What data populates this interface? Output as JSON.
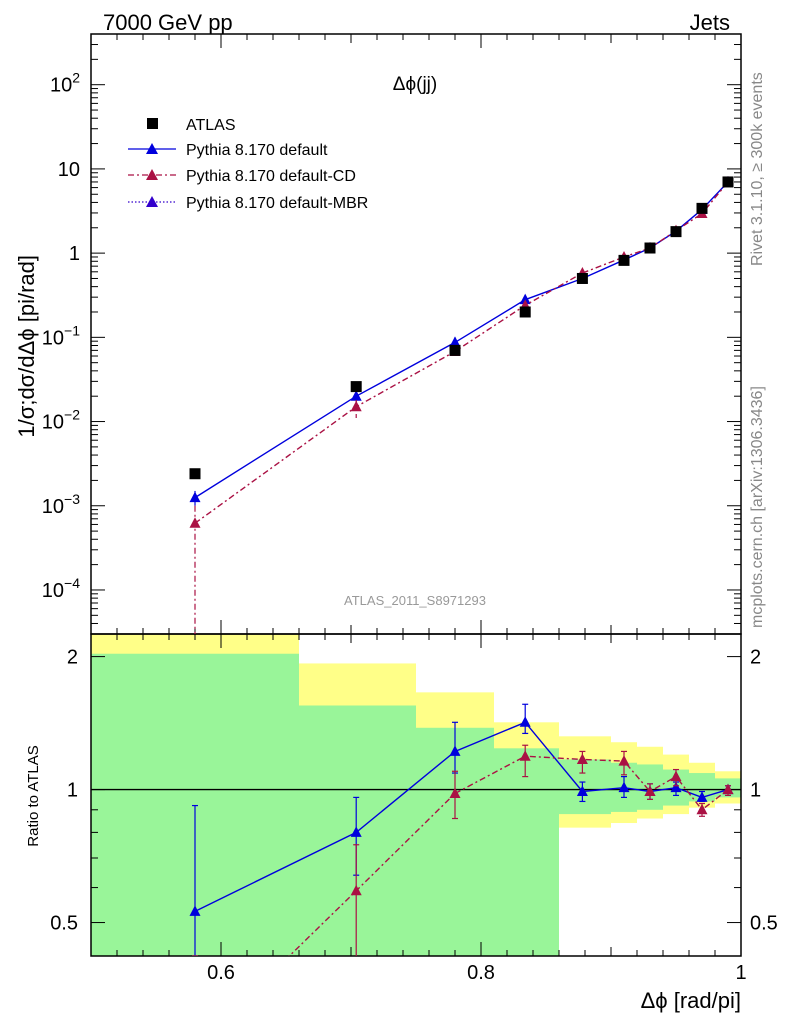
{
  "header": {
    "left": "7000 GeV pp",
    "right": "Jets"
  },
  "side_labels": {
    "top": "Rivet 3.1.10, ≥ 300k events",
    "bottom": "mcplots.cern.ch [arXiv:1306.3436]"
  },
  "watermark": "ATLAS_2011_S8971293",
  "chart_data": {
    "type": "scatter",
    "title": "Δϕ(jj)",
    "xlabel": "Δϕ [rad/pi]",
    "ylabel": "1/σ;dσ/dΔϕ [pi/rad]",
    "ratio_ylabel": "Ratio to ATLAS",
    "xlim": [
      0.5,
      1.0
    ],
    "ylim_main": [
      3e-05,
      400
    ],
    "ylim_ratio": [
      0.42,
      2.25
    ],
    "yscale_main": "log",
    "yscale_ratio": "log",
    "legend_position": "top-left",
    "x_ticks": [
      {
        "value": 0.6,
        "label": "0.6"
      },
      {
        "value": 0.8,
        "label": "0.8"
      },
      {
        "value": 1.0,
        "label": "1"
      }
    ],
    "main_y_ticks": [
      {
        "value": 100,
        "label": "10",
        "exp": "2"
      },
      {
        "value": 10,
        "label": "10",
        "exp": ""
      },
      {
        "value": 1,
        "label": "1",
        "exp": ""
      },
      {
        "value": 0.1,
        "label": "10",
        "exp": "−1"
      },
      {
        "value": 0.01,
        "label": "10",
        "exp": "−2"
      },
      {
        "value": 0.001,
        "label": "10",
        "exp": "−3"
      },
      {
        "value": 0.0001,
        "label": "10",
        "exp": "−4"
      }
    ],
    "ratio_y_ticks": [
      {
        "value": 2,
        "label": "2"
      },
      {
        "value": 1,
        "label": "1"
      },
      {
        "value": 0.5,
        "label": "0.5"
      }
    ],
    "data": {
      "name": "ATLAS",
      "color": "#000000",
      "x": [
        0.58,
        0.704,
        0.78,
        0.834,
        0.878,
        0.91,
        0.93,
        0.95,
        0.97,
        0.99
      ],
      "y": [
        0.0024,
        0.026,
        0.07,
        0.2,
        0.5,
        0.82,
        1.15,
        1.8,
        3.4,
        7.0
      ]
    },
    "bands": [
      {
        "x0": 0.5,
        "x1": 0.66,
        "lo_yellow": 0.3,
        "hi_yellow": 2.4,
        "lo_green": 0.3,
        "hi_green": 2.03
      },
      {
        "x0": 0.66,
        "x1": 0.75,
        "lo_yellow": 0.55,
        "hi_yellow": 1.93,
        "lo_green": 0.3,
        "hi_green": 1.55
      },
      {
        "x0": 0.75,
        "x1": 0.81,
        "lo_yellow": 0.73,
        "hi_yellow": 1.66,
        "lo_green": 0.3,
        "hi_green": 1.38
      },
      {
        "x0": 0.81,
        "x1": 0.86,
        "lo_yellow": 0.82,
        "hi_yellow": 1.42,
        "lo_green": 0.3,
        "hi_green": 1.24
      },
      {
        "x0": 0.86,
        "x1": 0.9,
        "lo_yellow": 0.82,
        "hi_yellow": 1.32,
        "lo_green": 0.88,
        "hi_green": 1.17
      },
      {
        "x0": 0.9,
        "x1": 0.92,
        "lo_yellow": 0.84,
        "hi_yellow": 1.28,
        "lo_green": 0.89,
        "hi_green": 1.15
      },
      {
        "x0": 0.92,
        "x1": 0.94,
        "lo_yellow": 0.86,
        "hi_yellow": 1.25,
        "lo_green": 0.9,
        "hi_green": 1.14
      },
      {
        "x0": 0.94,
        "x1": 0.96,
        "lo_yellow": 0.88,
        "hi_yellow": 1.2,
        "lo_green": 0.92,
        "hi_green": 1.11
      },
      {
        "x0": 0.96,
        "x1": 0.98,
        "lo_yellow": 0.91,
        "hi_yellow": 1.15,
        "lo_green": 0.94,
        "hi_green": 1.09
      },
      {
        "x0": 0.98,
        "x1": 1.0,
        "lo_yellow": 0.93,
        "hi_yellow": 1.1,
        "lo_green": 0.96,
        "hi_green": 1.06
      }
    ],
    "series": [
      {
        "name": "Pythia 8.170 default",
        "color": "#0000dd",
        "dash": "",
        "x": [
          0.58,
          0.704,
          0.78,
          0.834,
          0.878,
          0.91,
          0.93,
          0.95,
          0.97,
          0.99
        ],
        "y": [
          0.00125,
          0.02,
          0.087,
          0.28,
          0.5,
          0.83,
          1.15,
          1.82,
          3.3,
          7.0
        ],
        "ratio": [
          0.53,
          0.8,
          1.22,
          1.42,
          0.99,
          1.01,
          0.99,
          1.01,
          0.96,
          1.0
        ],
        "ratio_err_lo": [
          0.3,
          0.64,
          1.09,
          1.34,
          0.94,
          0.96,
          0.95,
          0.97,
          0.94,
          0.98
        ],
        "ratio_err_hi": [
          0.92,
          0.96,
          1.42,
          1.56,
          1.04,
          1.07,
          1.03,
          1.04,
          0.99,
          1.02
        ],
        "main_err_lo": [
          0.001,
          0.017,
          0.075,
          0.26,
          0.48,
          0.79,
          1.1,
          1.75,
          3.2,
          6.8
        ],
        "main_err_hi": [
          0.0015,
          0.023,
          0.1,
          0.3,
          0.53,
          0.87,
          1.2,
          1.9,
          3.4,
          7.2
        ]
      },
      {
        "name": "Pythia 8.170 default-CD",
        "color": "#aa1144",
        "dash": "6,3,2,3",
        "x": [
          0.58,
          0.704,
          0.78,
          0.834,
          0.878,
          0.91,
          0.93,
          0.95,
          0.97,
          0.99
        ],
        "y": [
          0.00062,
          0.015,
          0.068,
          0.24,
          0.58,
          0.9,
          1.15,
          1.85,
          2.95,
          7.0
        ],
        "ratio": [
          0.26,
          0.59,
          0.98,
          1.19,
          1.17,
          1.16,
          0.99,
          1.07,
          0.9,
          1.0
        ],
        "ratio_err_lo": [
          0.1,
          0.42,
          0.86,
          1.07,
          1.09,
          1.08,
          0.95,
          1.02,
          0.87,
          0.97
        ],
        "ratio_err_hi": [
          0.4,
          0.75,
          1.1,
          1.26,
          1.22,
          1.22,
          1.03,
          1.11,
          0.93,
          1.02
        ],
        "main_err_lo": [
          1e-05,
          0.011,
          0.06,
          0.22,
          0.55,
          0.86,
          1.1,
          1.78,
          2.85,
          6.8
        ],
        "main_err_hi": [
          0.001,
          0.018,
          0.075,
          0.26,
          0.61,
          0.94,
          1.2,
          1.92,
          3.05,
          7.2
        ]
      },
      {
        "name": "Pythia 8.170 default-MBR",
        "color": "#3300cc",
        "dash": "1.5,2",
        "x": [],
        "y": [],
        "ratio": []
      }
    ]
  }
}
